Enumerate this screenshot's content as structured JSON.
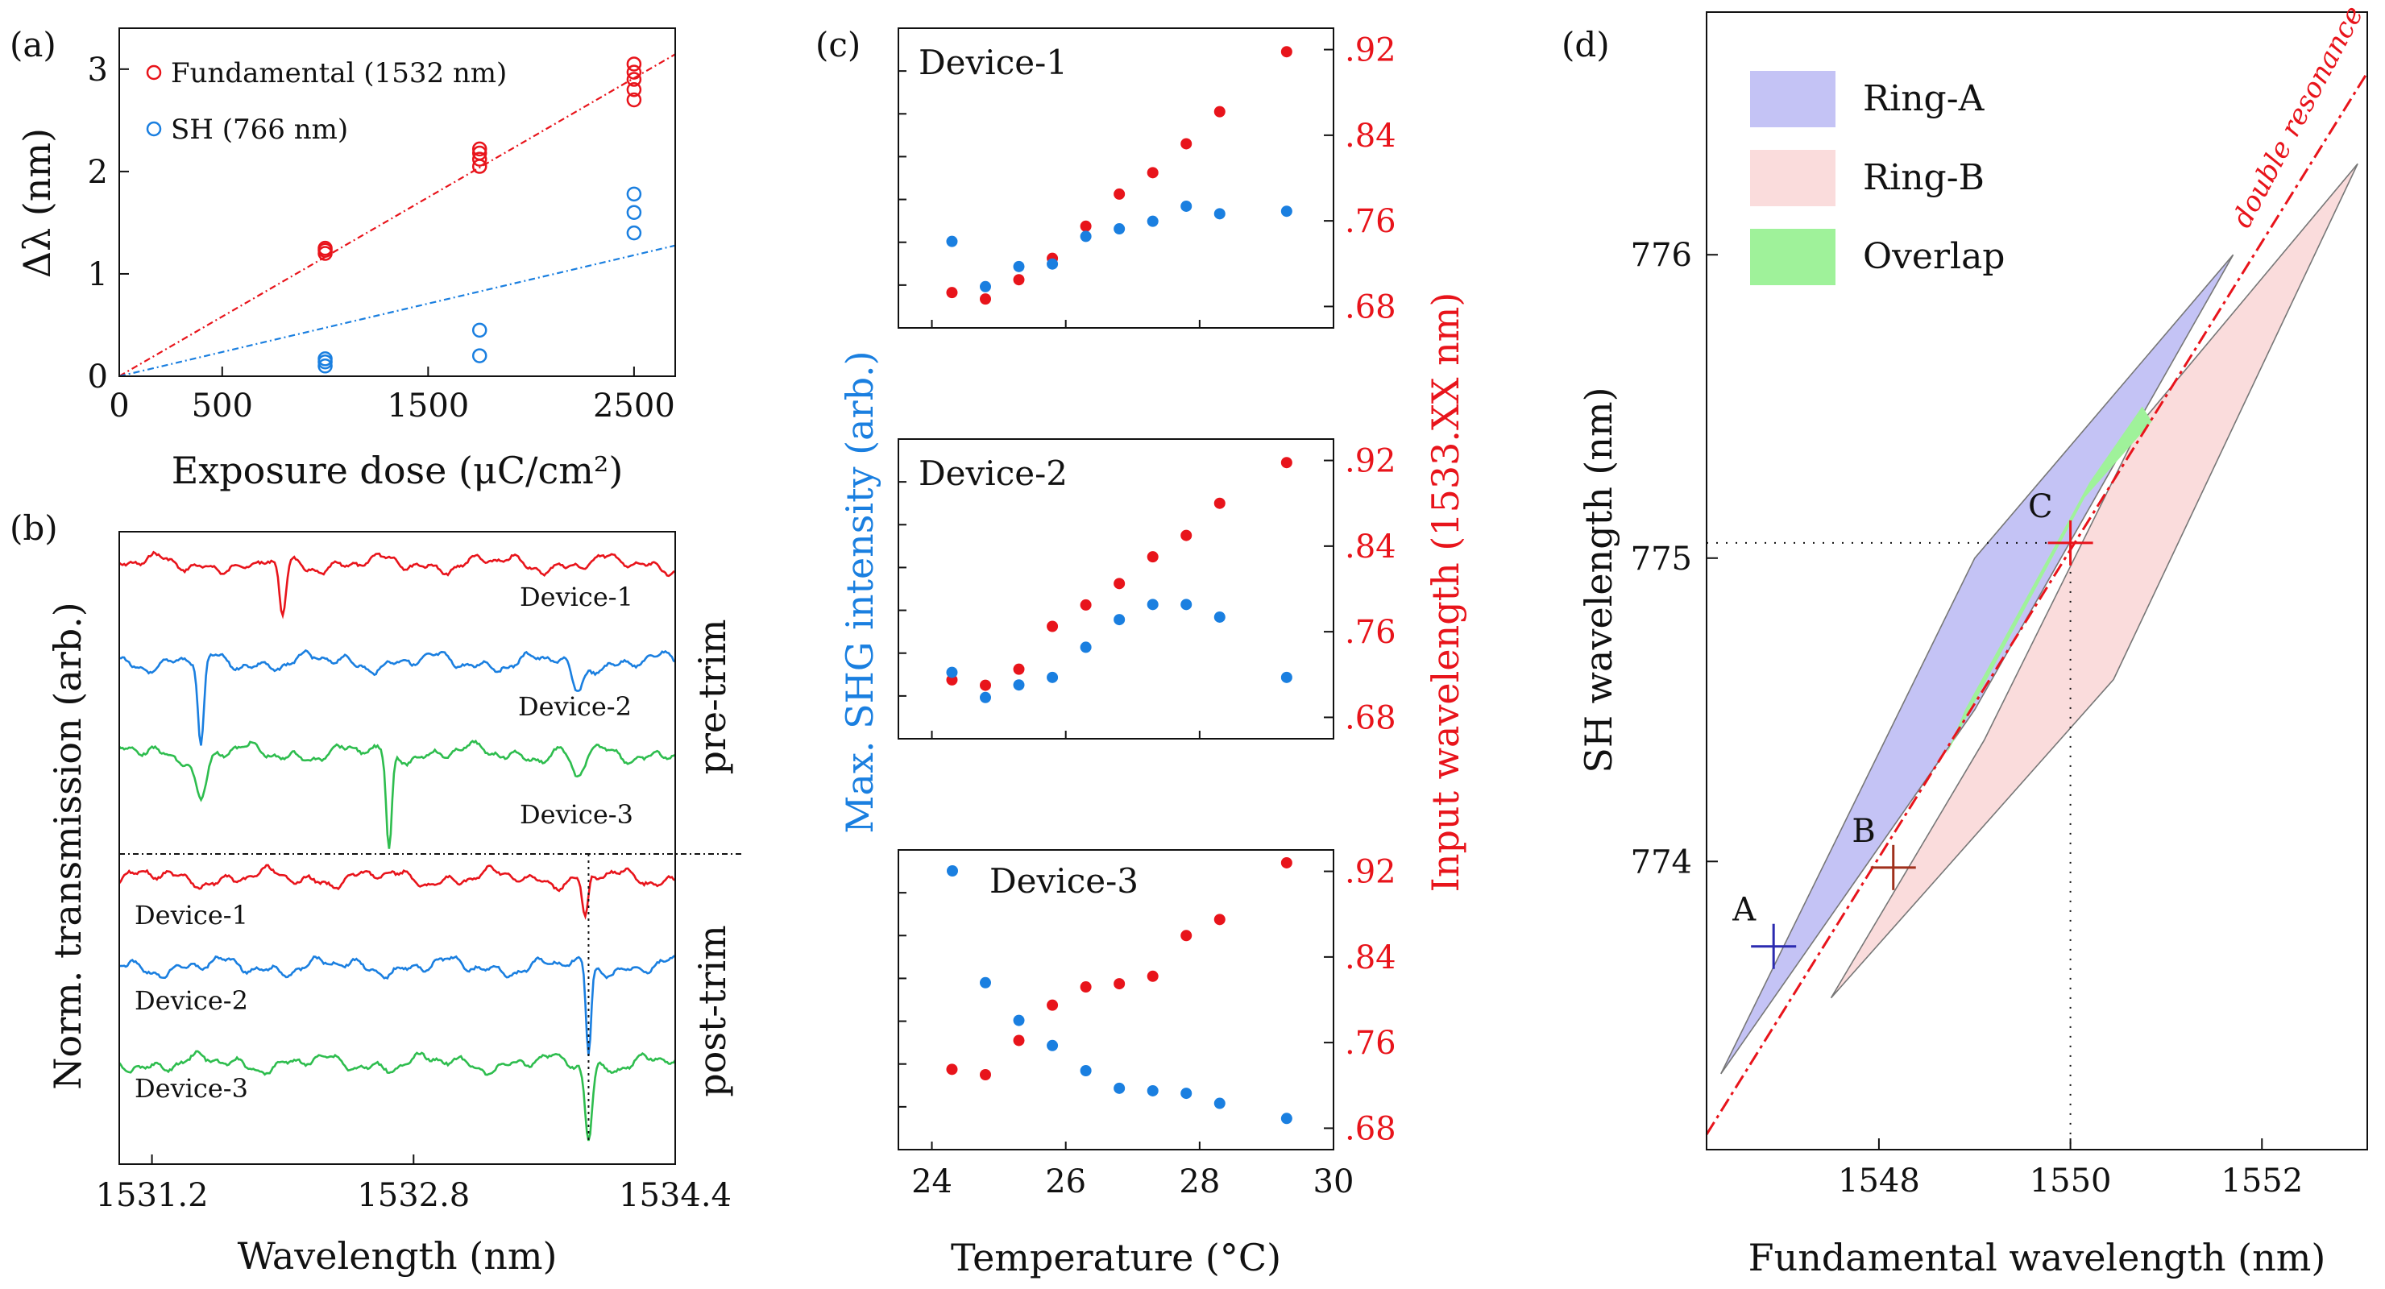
{
  "colors": {
    "red": "#e8141b",
    "blue": "#1a7fe0",
    "green": "#2ebd4e",
    "ringA_fill": "#c4c3f5",
    "ringB_fill": "#fadcdc",
    "overlap_fill": "#9ff29a",
    "marker_navy": "#2b2bb0",
    "marker_brown": "#a0301c",
    "text": "#111111"
  },
  "chart_data": [
    {
      "panel": "(a)",
      "type": "scatter",
      "xlabel": "Exposure dose (μC/cm²)",
      "ylabel": "Δλ (nm)",
      "xlim": [
        0,
        2700
      ],
      "ylim": [
        0,
        3.4
      ],
      "xticks": [
        0,
        500,
        1500,
        2500
      ],
      "xtick_labels": [
        "0",
        "500",
        "1500",
        "2500"
      ],
      "yticks": [
        0,
        1,
        2,
        3
      ],
      "ytick_labels": [
        "0",
        "1",
        "2",
        "3"
      ],
      "legend": "top-left",
      "series": [
        {
          "name": "Fundamental (1532 nm)",
          "color": "red",
          "marker": "open-circle",
          "points": [
            [
              1000,
              1.2
            ],
            [
              1000,
              1.23
            ],
            [
              1000,
              1.25
            ],
            [
              1750,
              2.05
            ],
            [
              1750,
              2.12
            ],
            [
              1750,
              2.18
            ],
            [
              1750,
              2.22
            ],
            [
              2500,
              2.7
            ],
            [
              2500,
              2.8
            ],
            [
              2500,
              2.9
            ],
            [
              2500,
              2.97
            ],
            [
              2500,
              3.05
            ]
          ],
          "fit": {
            "slope": 0.001165,
            "intercept": 0,
            "range": [
              0,
              2700
            ]
          }
        },
        {
          "name": "SH (766 nm)",
          "color": "blue",
          "marker": "open-circle",
          "points": [
            [
              1000,
              0.1
            ],
            [
              1000,
              0.14
            ],
            [
              1000,
              0.17
            ],
            [
              1750,
              0.2
            ],
            [
              1750,
              0.45
            ],
            [
              2500,
              1.4
            ],
            [
              2500,
              1.6
            ],
            [
              2500,
              1.78
            ]
          ],
          "fit": {
            "slope": 0.000473,
            "intercept": 0,
            "range": [
              0,
              2700
            ]
          }
        }
      ]
    },
    {
      "panel": "(b)",
      "type": "line",
      "xlabel": "Wavelength (nm)",
      "ylabel": "Norm. transmission (arb.)",
      "xlim": [
        1531.0,
        1534.4
      ],
      "xticks": [
        1531.2,
        1532.8,
        1534.4
      ],
      "xtick_labels": [
        "1531.2",
        "1532.8",
        "1534.4"
      ],
      "section_labels": [
        "pre-trim",
        "post-trim"
      ],
      "marker_line_x": 1533.87,
      "traces": [
        {
          "name": "Device-1",
          "section": "pre-trim",
          "color": "red",
          "baseline": 0,
          "dips": [
            {
              "x": 1532.0,
              "depth": 0.95,
              "width": 0.028
            },
            {
              "x": 1531.8,
              "depth": 0.2,
              "width": 0.05
            }
          ]
        },
        {
          "name": "Device-2",
          "section": "pre-trim",
          "color": "blue",
          "baseline": 1,
          "dips": [
            {
              "x": 1531.5,
              "depth": 1.05,
              "width": 0.026
            },
            {
              "x": 1533.8,
              "depth": 0.35,
              "width": 0.05
            }
          ]
        },
        {
          "name": "Device-3",
          "section": "pre-trim",
          "color": "green",
          "baseline": 2,
          "dips": [
            {
              "x": 1532.65,
              "depth": 1.0,
              "width": 0.024
            },
            {
              "x": 1531.5,
              "depth": 0.45,
              "width": 0.05
            },
            {
              "x": 1533.8,
              "depth": 0.3,
              "width": 0.05
            }
          ]
        },
        {
          "name": "Device-1",
          "section": "post-trim",
          "color": "red",
          "baseline": 3,
          "dips": [
            {
              "x": 1533.85,
              "depth": 0.95,
              "width": 0.026
            }
          ]
        },
        {
          "name": "Device-2",
          "section": "post-trim",
          "color": "blue",
          "baseline": 4,
          "dips": [
            {
              "x": 1533.87,
              "depth": 1.0,
              "width": 0.022
            }
          ]
        },
        {
          "name": "Device-3",
          "section": "post-trim",
          "color": "green",
          "baseline": 5,
          "dips": [
            {
              "x": 1533.87,
              "depth": 0.95,
              "width": 0.03
            }
          ]
        }
      ]
    },
    {
      "panel": "(c)",
      "type": "scatter",
      "xlabel": "Temperature (°C)",
      "ylabel_left": "Max. SHG intensity (arb.)",
      "ylabel_right": "Input wavelength (1533.XX nm)",
      "xlim": [
        23.5,
        30
      ],
      "xticks": [
        24,
        26,
        28,
        30
      ],
      "xtick_labels": [
        "24",
        "26",
        "28",
        "30"
      ],
      "right_ylim": [
        0.66,
        0.94
      ],
      "right_yticks": [
        0.68,
        0.76,
        0.84,
        0.92
      ],
      "right_ytick_labels": [
        ".68",
        ".76",
        ".84",
        ".92"
      ],
      "subplots": [
        {
          "title": "Device-1",
          "temperature": [
            24.3,
            24.8,
            25.3,
            25.8,
            26.3,
            26.8,
            27.3,
            27.8,
            28.3,
            29.3
          ],
          "input_wavelength": [
            0.693,
            0.687,
            0.705,
            0.725,
            0.755,
            0.785,
            0.805,
            0.832,
            0.862,
            0.918
          ],
          "shg_intensity": [
            0.28,
            0.1,
            0.18,
            0.19,
            0.3,
            0.33,
            0.36,
            0.42,
            0.39,
            0.4
          ]
        },
        {
          "title": "Device-2",
          "temperature": [
            24.3,
            24.8,
            25.3,
            25.8,
            26.3,
            26.8,
            27.3,
            27.8,
            28.3,
            29.3
          ],
          "input_wavelength": [
            0.715,
            0.71,
            0.725,
            0.765,
            0.785,
            0.805,
            0.83,
            0.85,
            0.88,
            0.918
          ],
          "shg_intensity": [
            0.2,
            0.1,
            0.15,
            0.18,
            0.3,
            0.41,
            0.47,
            0.47,
            0.42,
            0.18
          ]
        },
        {
          "title": "Device-3",
          "legend_marker": "blue-dot",
          "temperature": [
            24.3,
            24.8,
            25.3,
            25.8,
            26.3,
            26.8,
            27.3,
            27.8,
            28.3,
            29.3
          ],
          "input_wavelength": [
            0.735,
            0.73,
            0.762,
            0.795,
            0.812,
            0.815,
            0.822,
            0.86,
            0.875,
            0.928
          ],
          "shg_intensity": [
            null,
            0.6,
            0.45,
            0.35,
            0.25,
            0.18,
            0.17,
            0.16,
            0.12,
            0.06
          ]
        }
      ]
    },
    {
      "panel": "(d)",
      "type": "area",
      "xlabel": "Fundamental wavelength (nm)",
      "ylabel": "SH wavelength (nm)",
      "xlim": [
        1546.2,
        1553.1
      ],
      "ylim": [
        773.05,
        776.8
      ],
      "xticks": [
        1548,
        1550,
        1552
      ],
      "xtick_labels": [
        "1548",
        "1550",
        "1552"
      ],
      "yticks": [
        774,
        775,
        776
      ],
      "ytick_labels": [
        "774",
        "775",
        "776"
      ],
      "legend": "top-left",
      "regions": [
        {
          "name": "Ring-A",
          "fill": "ringA_fill",
          "polygon": [
            [
              1546.35,
              773.3
            ],
            [
              1549.0,
              775.0
            ],
            [
              1551.7,
              776.0
            ],
            [
              1551.25,
              775.75
            ],
            [
              1549.0,
              774.5
            ]
          ]
        },
        {
          "name": "Ring-B",
          "fill": "ringB_fill",
          "polygon": [
            [
              1547.5,
              773.55
            ],
            [
              1549.1,
              774.4
            ],
            [
              1550.75,
              775.45
            ],
            [
              1553.0,
              776.3
            ],
            [
              1550.45,
              774.6
            ]
          ]
        },
        {
          "name": "Overlap",
          "fill": "overlap_fill",
          "polygon": [
            [
              1548.7,
              774.35
            ],
            [
              1550.15,
              775.2
            ],
            [
              1550.85,
              775.45
            ],
            [
              1550.75,
              775.5
            ],
            [
              1550.2,
              775.25
            ],
            [
              1548.9,
              774.5
            ]
          ]
        }
      ],
      "line": {
        "name": "double resonance",
        "style": "dash-dot",
        "color": "red",
        "points": [
          [
            1546.2,
            773.1
          ],
          [
            1553.1,
            776.6
          ]
        ]
      },
      "guide_point": [
        1550.0,
        775.05
      ],
      "points": [
        {
          "label": "A",
          "x": 1546.9,
          "y": 773.72,
          "color": "marker_navy"
        },
        {
          "label": "B",
          "x": 1548.15,
          "y": 773.98,
          "color": "marker_brown"
        },
        {
          "label": "C",
          "x": 1550.0,
          "y": 775.05,
          "color": "red"
        }
      ]
    }
  ]
}
